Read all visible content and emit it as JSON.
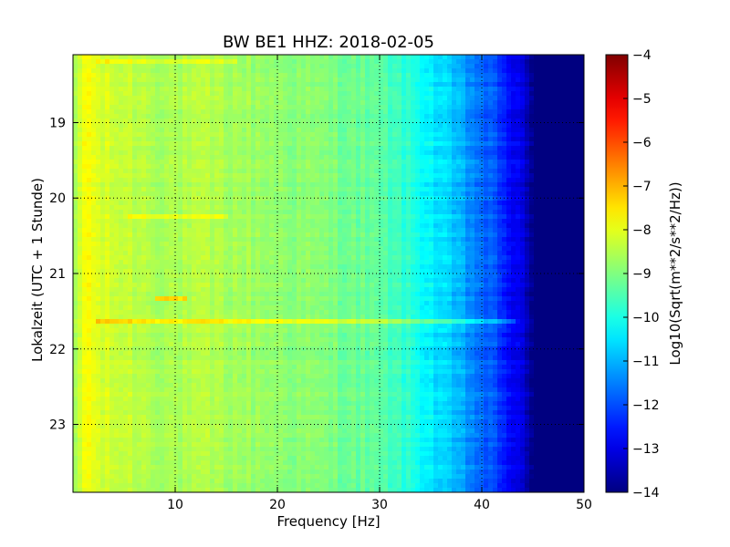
{
  "chart_data": {
    "type": "heatmap",
    "title": "BW BE1 HHZ: 2018-02-05",
    "xlabel": "Frequency [Hz]",
    "ylabel": "Lokalzeit (UTC + 1 Stunde)",
    "xlim": [
      0,
      50
    ],
    "ylim": [
      18.1,
      23.9
    ],
    "y_inverted": true,
    "x_ticks": [
      10,
      20,
      30,
      40,
      50
    ],
    "y_ticks": [
      19,
      20,
      21,
      22,
      23
    ],
    "x_tick_labels": [
      "10",
      "20",
      "30",
      "40",
      "50"
    ],
    "y_tick_labels": [
      "19",
      "20",
      "21",
      "22",
      "23"
    ],
    "grid": true,
    "colormap": "jet",
    "colorbar": {
      "label": "Log10(Sqrt(m**2/s**2/Hz))",
      "range": [
        -14,
        -4
      ],
      "ticks": [
        -4,
        -5,
        -6,
        -7,
        -8,
        -9,
        -10,
        -11,
        -12,
        -13,
        -14
      ],
      "tick_labels": [
        "−4",
        "−5",
        "−6",
        "−7",
        "−8",
        "−9",
        "−10",
        "−11",
        "−12",
        "−13",
        "−14"
      ]
    },
    "spectral_profile": {
      "frequency_hz": [
        0,
        0.5,
        1,
        1.5,
        2,
        3,
        5,
        8,
        10,
        13,
        15,
        20,
        25,
        28,
        30,
        32,
        34,
        36,
        38,
        40,
        42,
        43,
        44,
        45,
        50
      ],
      "log_value": [
        -9.0,
        -8.4,
        -7.9,
        -7.7,
        -8.0,
        -8.2,
        -8.3,
        -8.5,
        -8.6,
        -8.5,
        -8.6,
        -8.8,
        -9.0,
        -9.2,
        -9.4,
        -9.7,
        -10.1,
        -10.6,
        -11.1,
        -11.7,
        -12.3,
        -12.8,
        -13.2,
        -14.0,
        -14.0
      ]
    },
    "highlights": [
      {
        "time": 21.65,
        "freq_from": 2,
        "freq_to": 43,
        "delta": 0.9
      },
      {
        "time": 21.35,
        "freq_from": 8,
        "freq_to": 11,
        "delta": 1.2
      },
      {
        "time": 18.2,
        "freq_from": 2,
        "freq_to": 16,
        "delta": 0.5
      },
      {
        "time": 20.25,
        "freq_from": 5,
        "freq_to": 15,
        "delta": 0.5
      }
    ]
  }
}
